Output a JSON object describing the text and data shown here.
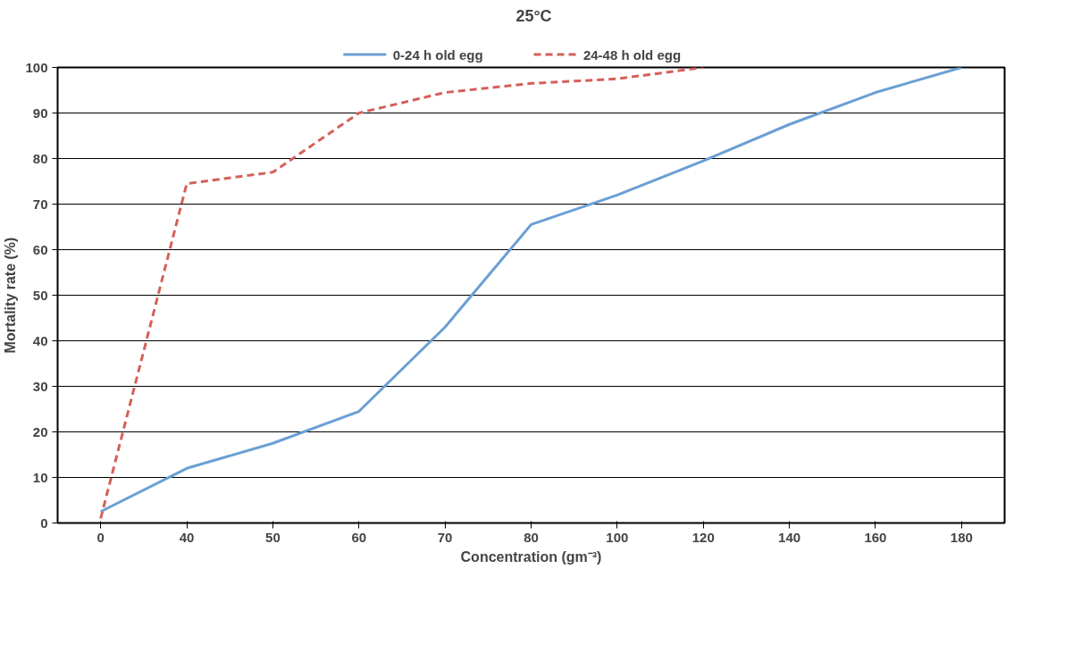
{
  "chart_data": {
    "type": "line",
    "title": "25°C",
    "xlabel": "Concentration (gm⁻³)",
    "ylabel": "Mortality rate (%)",
    "categories": [
      "0",
      "40",
      "50",
      "60",
      "70",
      "80",
      "100",
      "120",
      "140",
      "160",
      "180"
    ],
    "series": [
      {
        "name": "0-24 h old egg",
        "color": "#6a9fd4",
        "line_style": "solid",
        "values": [
          2.5,
          12,
          17.5,
          24.5,
          43,
          65.5,
          72,
          79.5,
          87.5,
          94.5,
          100
        ]
      },
      {
        "name": "24-48 h old egg",
        "color": "#d4605a",
        "line_style": "dashed",
        "values": [
          1,
          74.5,
          77,
          90,
          94.5,
          96.5,
          97.5,
          100,
          null,
          null,
          null
        ]
      }
    ],
    "ylim": [
      0,
      100
    ],
    "yticks": [
      0,
      10,
      20,
      30,
      40,
      50,
      60,
      70,
      80,
      90,
      100
    ],
    "grid": "y",
    "legend": "top",
    "marker": "none"
  }
}
